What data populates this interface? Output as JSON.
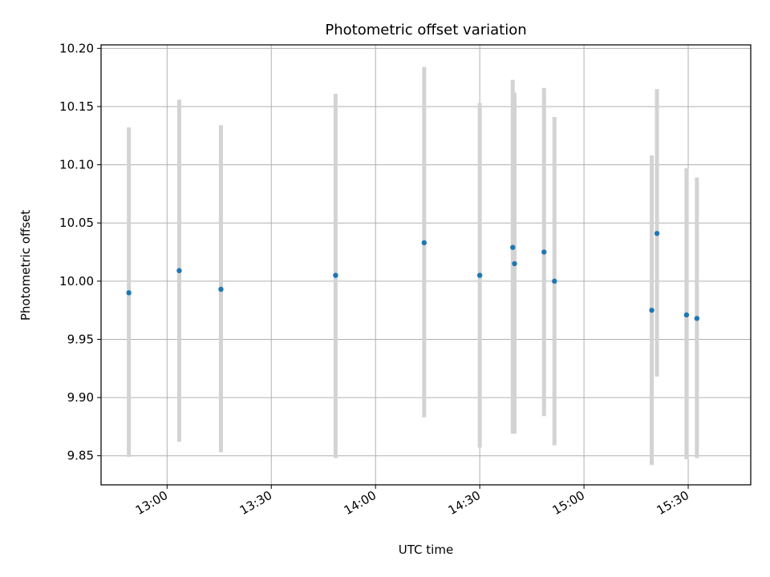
{
  "chart_data": {
    "type": "scatter",
    "title": "Photometric offset variation",
    "xlabel": "UTC time",
    "ylabel": "Photometric offset",
    "grid": true,
    "x_unit": "minutes since 12:00 UTC",
    "xlim": [
      41,
      228
    ],
    "ylim": [
      9.825,
      10.203
    ],
    "x_ticks": [
      {
        "value": 60,
        "label": "13:00"
      },
      {
        "value": 90,
        "label": "13:30"
      },
      {
        "value": 120,
        "label": "14:00"
      },
      {
        "value": 150,
        "label": "14:30"
      },
      {
        "value": 180,
        "label": "15:00"
      },
      {
        "value": 210,
        "label": "15:30"
      }
    ],
    "y_ticks": [
      {
        "value": 9.85,
        "label": "9.85"
      },
      {
        "value": 9.9,
        "label": "9.90"
      },
      {
        "value": 9.95,
        "label": "9.95"
      },
      {
        "value": 10.0,
        "label": "10.00"
      },
      {
        "value": 10.05,
        "label": "10.05"
      },
      {
        "value": 10.1,
        "label": "10.10"
      },
      {
        "value": 10.15,
        "label": "10.15"
      },
      {
        "value": 10.2,
        "label": "10.20"
      }
    ],
    "colors": {
      "point": "#1f77b4",
      "errorbar": "#d3d3d3",
      "grid": "#b0b0b0",
      "axis": "#000000"
    },
    "series": [
      {
        "name": "offset",
        "points": [
          {
            "x": 49.0,
            "y": 9.99,
            "lo": 9.849,
            "hi": 10.132
          },
          {
            "x": 63.5,
            "y": 10.009,
            "lo": 9.862,
            "hi": 10.156
          },
          {
            "x": 75.5,
            "y": 9.993,
            "lo": 9.853,
            "hi": 10.134
          },
          {
            "x": 108.5,
            "y": 10.005,
            "lo": 9.848,
            "hi": 10.161
          },
          {
            "x": 134.0,
            "y": 10.033,
            "lo": 9.883,
            "hi": 10.184
          },
          {
            "x": 150.0,
            "y": 10.005,
            "lo": 9.857,
            "hi": 10.153
          },
          {
            "x": 159.5,
            "y": 10.029,
            "lo": 9.869,
            "hi": 10.173
          },
          {
            "x": 160.0,
            "y": 10.015,
            "lo": 9.869,
            "hi": 10.162
          },
          {
            "x": 168.5,
            "y": 10.025,
            "lo": 9.884,
            "hi": 10.166
          },
          {
            "x": 171.5,
            "y": 10.0,
            "lo": 9.859,
            "hi": 10.141
          },
          {
            "x": 199.5,
            "y": 9.975,
            "lo": 9.842,
            "hi": 10.108
          },
          {
            "x": 201.0,
            "y": 10.041,
            "lo": 9.918,
            "hi": 10.165
          },
          {
            "x": 209.5,
            "y": 9.971,
            "lo": 9.847,
            "hi": 10.097
          },
          {
            "x": 212.5,
            "y": 9.968,
            "lo": 9.848,
            "hi": 10.089
          }
        ]
      }
    ]
  }
}
